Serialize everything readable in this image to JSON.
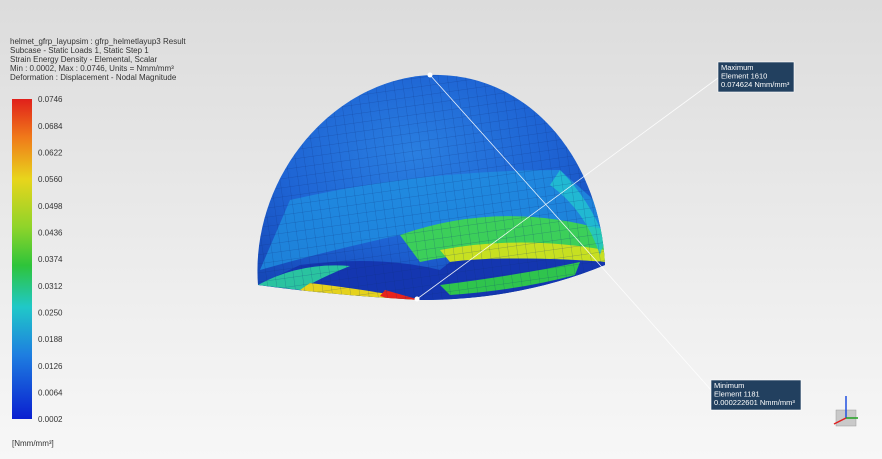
{
  "header": {
    "lines": [
      "helmet_gfrp_layupsim : gfrp_helmetlayup3 Result",
      "Subcase - Static Loads 1, Static Step 1",
      "Strain Energy Density - Elemental, Scalar",
      "Min : 0.0002, Max : 0.0746, Units = Nmm/mm³",
      "Deformation : Displacement - Nodal Magnitude"
    ]
  },
  "legend": {
    "labels": [
      "0.0746",
      "0.0684",
      "0.0622",
      "0.0560",
      "0.0498",
      "0.0436",
      "0.0374",
      "0.0312",
      "0.0250",
      "0.0188",
      "0.0126",
      "0.0064",
      "0.0002"
    ],
    "unit": "[Nmm/mm³]"
  },
  "maximum": {
    "lines": [
      "Maximum",
      "Element 1610",
      "0.074624 Nmm/mm³"
    ]
  },
  "minimum": {
    "lines": [
      "Minimum",
      "Element 1181",
      "0.000222601 Nmm/mm³"
    ]
  }
}
